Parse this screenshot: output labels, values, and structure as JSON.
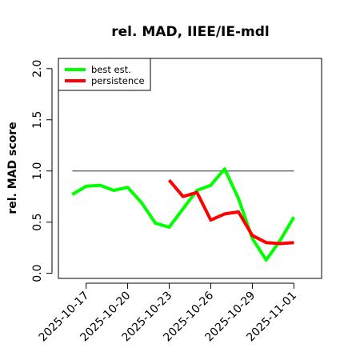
{
  "chart_data": {
    "type": "line",
    "title": "rel. MAD, IIEE/IE-mdl",
    "xlabel": "",
    "ylabel": "rel. MAD score",
    "x_start": "2025-10-16",
    "xlim_dates": [
      "2025-10-15",
      "2025-11-03"
    ],
    "xticks": [
      "2025-10-17",
      "2025-10-20",
      "2025-10-23",
      "2025-10-26",
      "2025-10-29",
      "2025-11-01"
    ],
    "ylim": [
      -0.05,
      2.1
    ],
    "yticks": [
      "0.0",
      "0.5",
      "1.0",
      "1.5",
      "2.0"
    ],
    "reference_line": {
      "y": 1.0,
      "x_from": "2025-10-16",
      "x_to": "2025-11-01",
      "color": "#666666"
    },
    "legend": {
      "position": "top-left"
    },
    "series": [
      {
        "name": "best est.",
        "color": "#00ff00",
        "x": [
          "2025-10-16",
          "2025-10-17",
          "2025-10-18",
          "2025-10-19",
          "2025-10-20",
          "2025-10-21",
          "2025-10-22",
          "2025-10-23",
          "2025-10-24",
          "2025-10-25",
          "2025-10-26",
          "2025-10-27",
          "2025-10-28",
          "2025-10-29",
          "2025-10-30",
          "2025-10-31",
          "2025-11-01"
        ],
        "values": [
          0.77,
          0.85,
          0.86,
          0.81,
          0.84,
          0.69,
          0.49,
          0.45,
          0.63,
          0.81,
          0.86,
          1.02,
          0.73,
          0.34,
          0.13,
          0.32,
          0.55
        ]
      },
      {
        "name": "persistence",
        "color": "#ff0000",
        "x": [
          "2025-10-23",
          "2025-10-24",
          "2025-10-25",
          "2025-10-26",
          "2025-10-27",
          "2025-10-28",
          "2025-10-29",
          "2025-10-30",
          "2025-10-31",
          "2025-11-01"
        ],
        "values": [
          0.91,
          0.75,
          0.79,
          0.52,
          0.58,
          0.6,
          0.37,
          0.3,
          0.29,
          0.3
        ]
      }
    ]
  }
}
